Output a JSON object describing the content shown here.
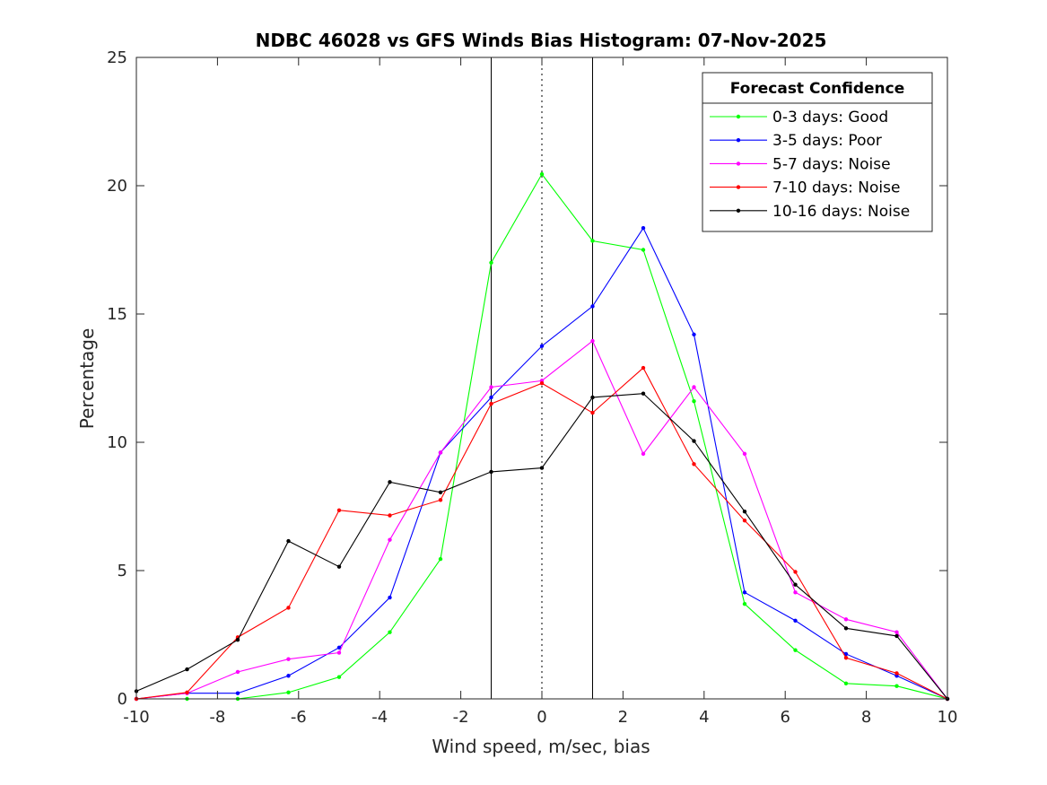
{
  "chart_data": {
    "type": "line",
    "title": "NDBC 46028 vs GFS Winds Bias Histogram: 07-Nov-2025",
    "xlabel": "Wind speed, m/sec, bias",
    "ylabel": "Percentage",
    "xlim": [
      -10,
      10
    ],
    "ylim": [
      0,
      25
    ],
    "xticks": [
      -10,
      -8,
      -6,
      -4,
      -2,
      0,
      2,
      4,
      6,
      8,
      10
    ],
    "yticks": [
      0,
      5,
      10,
      15,
      20,
      25
    ],
    "x": [
      -10,
      -8.75,
      -7.5,
      -6.25,
      -5,
      -3.75,
      -2.5,
      -1.25,
      0,
      1.25,
      2.5,
      3.75,
      5,
      6.25,
      7.5,
      8.75,
      10
    ],
    "vertical_lines": [
      {
        "x": -1.25,
        "style": "solid"
      },
      {
        "x": 0,
        "style": "dotted"
      },
      {
        "x": 1.25,
        "style": "solid"
      }
    ],
    "legend_title": "Forecast Confidence",
    "legend_position": "top-right",
    "series": [
      {
        "name": "0-3 days: Good",
        "color": "#00ff00",
        "values": [
          0,
          0,
          0,
          0.25,
          0.85,
          2.6,
          5.45,
          17.0,
          20.45,
          17.85,
          17.5,
          11.6,
          3.7,
          1.9,
          0.6,
          0.5,
          0
        ]
      },
      {
        "name": "3-5 days: Poor",
        "color": "#0000ff",
        "values": [
          0,
          0.22,
          0.22,
          0.9,
          2.0,
          3.95,
          9.6,
          11.75,
          13.75,
          15.3,
          18.35,
          14.2,
          4.15,
          3.05,
          1.75,
          0.9,
          0
        ]
      },
      {
        "name": "5-7 days: Noise",
        "color": "#ff00ff",
        "values": [
          0,
          0.22,
          1.05,
          1.55,
          1.8,
          6.2,
          9.6,
          12.15,
          12.4,
          13.95,
          9.55,
          12.15,
          9.55,
          4.15,
          3.1,
          2.6,
          0
        ]
      },
      {
        "name": "7-10 days: Noise",
        "color": "#ff0000",
        "values": [
          0,
          0.25,
          2.4,
          3.55,
          7.35,
          7.15,
          7.75,
          11.5,
          12.3,
          11.15,
          12.9,
          9.15,
          6.95,
          4.95,
          1.6,
          1.0,
          0
        ]
      },
      {
        "name": "10-16 days: Noise",
        "color": "#000000",
        "values": [
          0.3,
          1.15,
          2.3,
          6.15,
          5.15,
          8.45,
          8.05,
          8.85,
          9.0,
          11.75,
          11.9,
          10.05,
          7.3,
          4.45,
          2.75,
          2.45,
          0
        ]
      }
    ]
  }
}
